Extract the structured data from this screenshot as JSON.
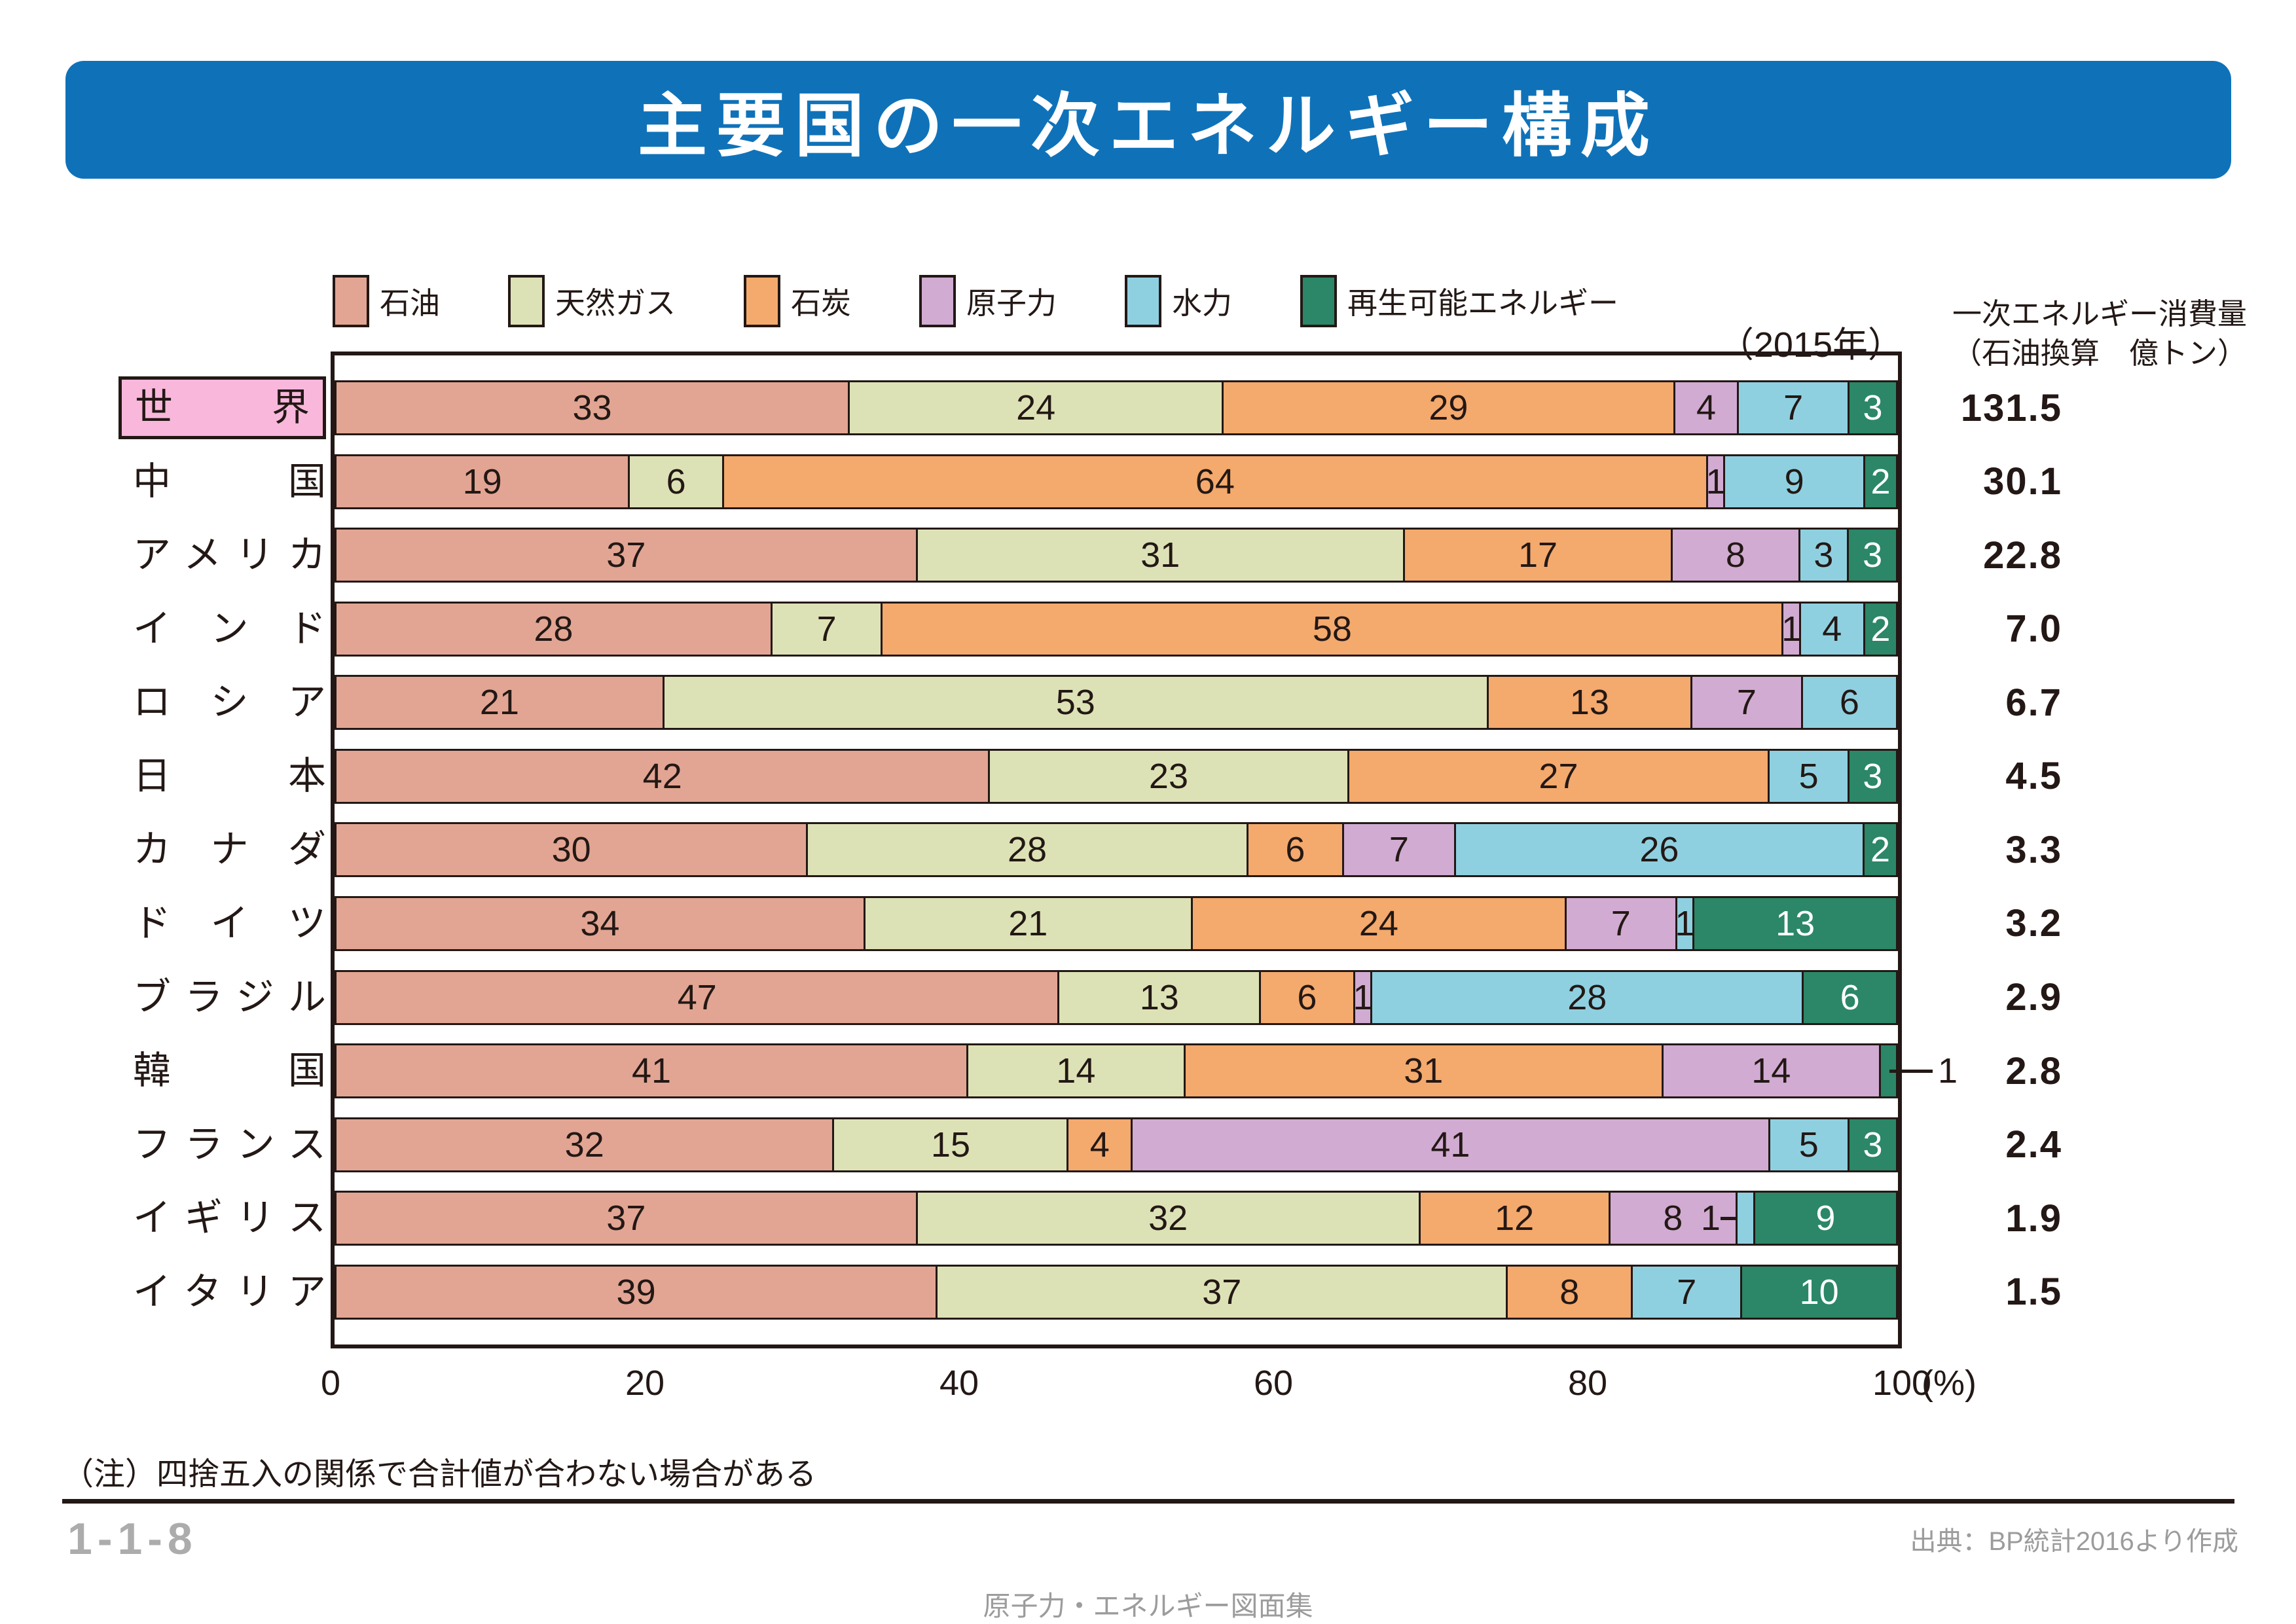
{
  "title": "主要国の一次エネルギー構成",
  "year_label": "（2015年）",
  "consumption": {
    "line1": "一次エネルギー消費量",
    "line2": "（石油換算　億トン）"
  },
  "legend": [
    {
      "key": "oil",
      "label": "石油",
      "color": "#E2A593"
    },
    {
      "key": "gas",
      "label": "天然ガス",
      "color": "#DDE2B6"
    },
    {
      "key": "coal",
      "label": "石炭",
      "color": "#F4A96D"
    },
    {
      "key": "nuclear",
      "label": "原子力",
      "color": "#D1ABD2"
    },
    {
      "key": "hydro",
      "label": "水力",
      "color": "#8FD0E0"
    },
    {
      "key": "renewable",
      "label": "再生可能エネルギー",
      "color": "#2B8767"
    }
  ],
  "axis": {
    "ticks": [
      "0",
      "20",
      "40",
      "60",
      "80",
      "100"
    ],
    "unit": "(%)"
  },
  "note": "（注）四捨五入の関係で合計値が合わない場合がある",
  "page_number": "1-1-8",
  "source": "出典：BP統計2016より作成",
  "footer": "原子力・エネルギー図面集",
  "chart_data": {
    "type": "bar",
    "stacked": true,
    "orientation": "horizontal",
    "title": "主要国の一次エネルギー構成（2015年）",
    "xlabel": "(%)",
    "xlim": [
      0,
      100
    ],
    "value_column_header": "一次エネルギー消費量（石油換算 億トン）",
    "series_names": [
      "石油",
      "天然ガス",
      "石炭",
      "原子力",
      "水力",
      "再生可能エネルギー"
    ],
    "colors": {
      "oil": "#E2A593",
      "gas": "#DDE2B6",
      "coal": "#F4A96D",
      "nuclear": "#D1ABD2",
      "hydro": "#8FD0E0",
      "renewable": "#2B8767"
    },
    "dark": "#231815",
    "highlight_color": "#F9B7DC",
    "rows": [
      {
        "id": "world",
        "country": "世界",
        "highlight": true,
        "total": "131.5",
        "segments": [
          {
            "k": "oil",
            "v": 33,
            "label": "33"
          },
          {
            "k": "gas",
            "v": 24,
            "label": "24"
          },
          {
            "k": "coal",
            "v": 29,
            "label": "29"
          },
          {
            "k": "nuclear",
            "v": 4,
            "label": "4"
          },
          {
            "k": "hydro",
            "v": 7,
            "label": "7"
          },
          {
            "k": "renewable",
            "v": 3,
            "label": "3"
          }
        ]
      },
      {
        "id": "china",
        "country": "中国",
        "highlight": false,
        "total": "30.1",
        "segments": [
          {
            "k": "oil",
            "v": 19,
            "label": "19"
          },
          {
            "k": "gas",
            "v": 6,
            "label": "6"
          },
          {
            "k": "coal",
            "v": 64,
            "label": "64"
          },
          {
            "k": "nuclear",
            "v": 1,
            "label": "1"
          },
          {
            "k": "hydro",
            "v": 9,
            "label": "9"
          },
          {
            "k": "renewable",
            "v": 2,
            "label": "2"
          }
        ]
      },
      {
        "id": "usa",
        "country": "アメリカ",
        "highlight": false,
        "total": "22.8",
        "segments": [
          {
            "k": "oil",
            "v": 37,
            "label": "37"
          },
          {
            "k": "gas",
            "v": 31,
            "label": "31"
          },
          {
            "k": "coal",
            "v": 17,
            "label": "17"
          },
          {
            "k": "nuclear",
            "v": 8,
            "label": "8"
          },
          {
            "k": "hydro",
            "v": 3,
            "label": "3"
          },
          {
            "k": "renewable",
            "v": 3,
            "label": "3"
          }
        ]
      },
      {
        "id": "india",
        "country": "インド",
        "highlight": false,
        "total": "7.0",
        "segments": [
          {
            "k": "oil",
            "v": 28,
            "label": "28"
          },
          {
            "k": "gas",
            "v": 7,
            "label": "7"
          },
          {
            "k": "coal",
            "v": 58,
            "label": "58"
          },
          {
            "k": "nuclear",
            "v": 1,
            "label": "1"
          },
          {
            "k": "hydro",
            "v": 4,
            "label": "4"
          },
          {
            "k": "renewable",
            "v": 2,
            "label": "2"
          }
        ]
      },
      {
        "id": "russia",
        "country": "ロシア",
        "highlight": false,
        "total": "6.7",
        "segments": [
          {
            "k": "oil",
            "v": 21,
            "label": "21"
          },
          {
            "k": "gas",
            "v": 53,
            "label": "53"
          },
          {
            "k": "coal",
            "v": 13,
            "label": "13"
          },
          {
            "k": "nuclear",
            "v": 7,
            "label": "7"
          },
          {
            "k": "hydro",
            "v": 6,
            "label": "6"
          }
        ]
      },
      {
        "id": "japan",
        "country": "日本",
        "highlight": false,
        "total": "4.5",
        "segments": [
          {
            "k": "oil",
            "v": 42,
            "label": "42"
          },
          {
            "k": "gas",
            "v": 23,
            "label": "23"
          },
          {
            "k": "coal",
            "v": 27,
            "label": "27"
          },
          {
            "k": "hydro",
            "v": 5,
            "label": "5"
          },
          {
            "k": "renewable",
            "v": 3,
            "label": "3"
          }
        ]
      },
      {
        "id": "canada",
        "country": "カナダ",
        "highlight": false,
        "total": "3.3",
        "segments": [
          {
            "k": "oil",
            "v": 30,
            "label": "30"
          },
          {
            "k": "gas",
            "v": 28,
            "label": "28"
          },
          {
            "k": "coal",
            "v": 6,
            "label": "6"
          },
          {
            "k": "nuclear",
            "v": 7,
            "label": "7"
          },
          {
            "k": "hydro",
            "v": 26,
            "label": "26"
          },
          {
            "k": "renewable",
            "v": 2,
            "label": "2"
          }
        ]
      },
      {
        "id": "germany",
        "country": "ドイツ",
        "highlight": false,
        "total": "3.2",
        "segments": [
          {
            "k": "oil",
            "v": 34,
            "label": "34"
          },
          {
            "k": "gas",
            "v": 21,
            "label": "21"
          },
          {
            "k": "coal",
            "v": 24,
            "label": "24"
          },
          {
            "k": "nuclear",
            "v": 7,
            "label": "7"
          },
          {
            "k": "hydro",
            "v": 1,
            "label": "1"
          },
          {
            "k": "renewable",
            "v": 13,
            "label": "13"
          }
        ]
      },
      {
        "id": "brazil",
        "country": "ブラジル",
        "highlight": false,
        "total": "2.9",
        "segments": [
          {
            "k": "oil",
            "v": 47,
            "label": "47"
          },
          {
            "k": "gas",
            "v": 13,
            "label": "13"
          },
          {
            "k": "coal",
            "v": 6,
            "label": "6"
          },
          {
            "k": "nuclear",
            "v": 1,
            "label": "1"
          },
          {
            "k": "hydro",
            "v": 28,
            "label": "28"
          },
          {
            "k": "renewable",
            "v": 6,
            "label": "6"
          }
        ]
      },
      {
        "id": "korea",
        "country": "韓国",
        "highlight": false,
        "total": "2.8",
        "segments": [
          {
            "k": "oil",
            "v": 41,
            "label": "41"
          },
          {
            "k": "gas",
            "v": 14,
            "label": "14"
          },
          {
            "k": "coal",
            "v": 31,
            "label": "31"
          },
          {
            "k": "nuclear",
            "v": 14,
            "label": "14"
          },
          {
            "k": "renewable",
            "v": 1,
            "label": "1",
            "label_pos": "outside-right"
          }
        ]
      },
      {
        "id": "france",
        "country": "フランス",
        "highlight": false,
        "total": "2.4",
        "segments": [
          {
            "k": "oil",
            "v": 32,
            "label": "32"
          },
          {
            "k": "gas",
            "v": 15,
            "label": "15"
          },
          {
            "k": "coal",
            "v": 4,
            "label": "4"
          },
          {
            "k": "nuclear",
            "v": 41,
            "label": "41"
          },
          {
            "k": "hydro",
            "v": 5,
            "label": "5"
          },
          {
            "k": "renewable",
            "v": 3,
            "label": "3"
          }
        ]
      },
      {
        "id": "uk",
        "country": "イギリス",
        "highlight": false,
        "total": "1.9",
        "segments": [
          {
            "k": "oil",
            "v": 37,
            "label": "37"
          },
          {
            "k": "gas",
            "v": 32,
            "label": "32"
          },
          {
            "k": "coal",
            "v": 12,
            "label": "12"
          },
          {
            "k": "nuclear",
            "v": 8,
            "label": "8"
          },
          {
            "k": "hydro",
            "v": 1,
            "label": "1",
            "label_pos": "left-dash"
          },
          {
            "k": "renewable",
            "v": 9,
            "label": "9"
          }
        ]
      },
      {
        "id": "italy",
        "country": "イタリア",
        "highlight": false,
        "total": "1.5",
        "segments": [
          {
            "k": "oil",
            "v": 39,
            "label": "39"
          },
          {
            "k": "gas",
            "v": 37,
            "label": "37"
          },
          {
            "k": "coal",
            "v": 8,
            "label": "8"
          },
          {
            "k": "hydro",
            "v": 7,
            "label": "7"
          },
          {
            "k": "renewable",
            "v": 10,
            "label": "10"
          }
        ]
      }
    ]
  }
}
